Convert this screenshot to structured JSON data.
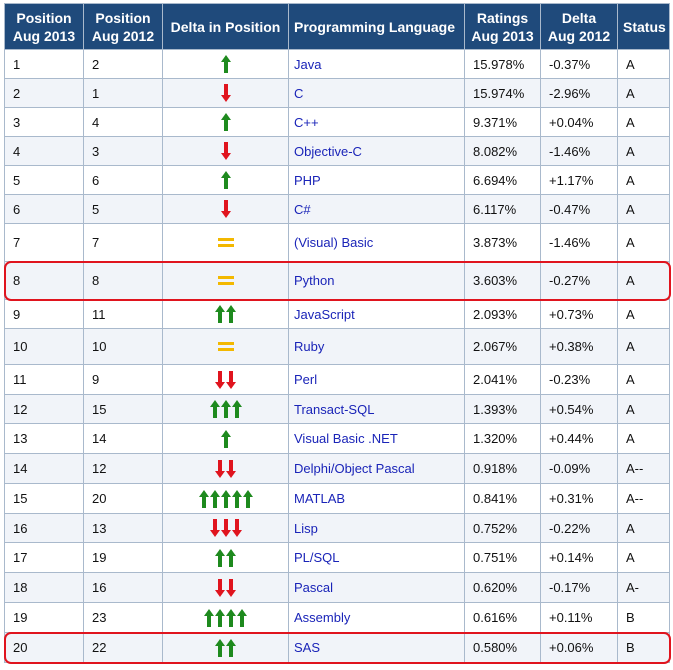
{
  "headers": {
    "pos_2013_l1": "Position",
    "pos_2013_l2": "Aug 2013",
    "pos_2012_l1": "Position",
    "pos_2012_l2": "Aug 2012",
    "delta_position": "Delta in Position",
    "language": "Programming Language",
    "ratings_l1": "Ratings",
    "ratings_l2": "Aug 2013",
    "delta_l1": "Delta",
    "delta_l2": "Aug 2012",
    "status": "Status"
  },
  "colors": {
    "up": "#1e8a1e",
    "down": "#e0141e",
    "same": "#f3b800",
    "highlight": "#e0141e",
    "header": "#1f4a7b"
  },
  "rows": [
    {
      "pos2013": "1",
      "pos2012": "2",
      "dir": "up",
      "count": 1,
      "language": "Java",
      "rating": "15.978%",
      "delta": "-0.37%",
      "status": "A"
    },
    {
      "pos2013": "2",
      "pos2012": "1",
      "dir": "down",
      "count": 1,
      "language": "C",
      "rating": "15.974%",
      "delta": "-2.96%",
      "status": "A"
    },
    {
      "pos2013": "3",
      "pos2012": "4",
      "dir": "up",
      "count": 1,
      "language": "C++",
      "rating": "9.371%",
      "delta": "+0.04%",
      "status": "A"
    },
    {
      "pos2013": "4",
      "pos2012": "3",
      "dir": "down",
      "count": 1,
      "language": "Objective-C",
      "rating": "8.082%",
      "delta": "-1.46%",
      "status": "A"
    },
    {
      "pos2013": "5",
      "pos2012": "6",
      "dir": "up",
      "count": 1,
      "language": "PHP",
      "rating": "6.694%",
      "delta": "+1.17%",
      "status": "A"
    },
    {
      "pos2013": "6",
      "pos2012": "5",
      "dir": "down",
      "count": 1,
      "language": "C#",
      "rating": "6.117%",
      "delta": "-0.47%",
      "status": "A"
    },
    {
      "pos2013": "7",
      "pos2012": "7",
      "dir": "same",
      "count": 1,
      "language": "(Visual) Basic",
      "rating": "3.873%",
      "delta": "-1.46%",
      "status": "A"
    },
    {
      "pos2013": "8",
      "pos2012": "8",
      "dir": "same",
      "count": 1,
      "language": "Python",
      "rating": "3.603%",
      "delta": "-0.27%",
      "status": "A",
      "highlight": true
    },
    {
      "pos2013": "9",
      "pos2012": "11",
      "dir": "up",
      "count": 2,
      "language": "JavaScript",
      "rating": "2.093%",
      "delta": "+0.73%",
      "status": "A"
    },
    {
      "pos2013": "10",
      "pos2012": "10",
      "dir": "same",
      "count": 1,
      "language": "Ruby",
      "rating": "2.067%",
      "delta": "+0.38%",
      "status": "A"
    },
    {
      "pos2013": "11",
      "pos2012": "9",
      "dir": "down",
      "count": 2,
      "language": "Perl",
      "rating": "2.041%",
      "delta": "-0.23%",
      "status": "A"
    },
    {
      "pos2013": "12",
      "pos2012": "15",
      "dir": "up",
      "count": 3,
      "language": "Transact-SQL",
      "rating": "1.393%",
      "delta": "+0.54%",
      "status": "A"
    },
    {
      "pos2013": "13",
      "pos2012": "14",
      "dir": "up",
      "count": 1,
      "language": "Visual Basic .NET",
      "rating": "1.320%",
      "delta": "+0.44%",
      "status": "A"
    },
    {
      "pos2013": "14",
      "pos2012": "12",
      "dir": "down",
      "count": 2,
      "language": "Delphi/Object Pascal",
      "rating": "0.918%",
      "delta": "-0.09%",
      "status": "A--"
    },
    {
      "pos2013": "15",
      "pos2012": "20",
      "dir": "up",
      "count": 5,
      "language": "MATLAB",
      "rating": "0.841%",
      "delta": "+0.31%",
      "status": "A--"
    },
    {
      "pos2013": "16",
      "pos2012": "13",
      "dir": "down",
      "count": 3,
      "language": "Lisp",
      "rating": "0.752%",
      "delta": "-0.22%",
      "status": "A"
    },
    {
      "pos2013": "17",
      "pos2012": "19",
      "dir": "up",
      "count": 2,
      "language": "PL/SQL",
      "rating": "0.751%",
      "delta": "+0.14%",
      "status": "A"
    },
    {
      "pos2013": "18",
      "pos2012": "16",
      "dir": "down",
      "count": 2,
      "language": "Pascal",
      "rating": "0.620%",
      "delta": "-0.17%",
      "status": "A-"
    },
    {
      "pos2013": "19",
      "pos2012": "23",
      "dir": "up",
      "count": 4,
      "language": "Assembly",
      "rating": "0.616%",
      "delta": "+0.11%",
      "status": "B"
    },
    {
      "pos2013": "20",
      "pos2012": "22",
      "dir": "up",
      "count": 2,
      "language": "SAS",
      "rating": "0.580%",
      "delta": "+0.06%",
      "status": "B",
      "highlight": true
    }
  ]
}
